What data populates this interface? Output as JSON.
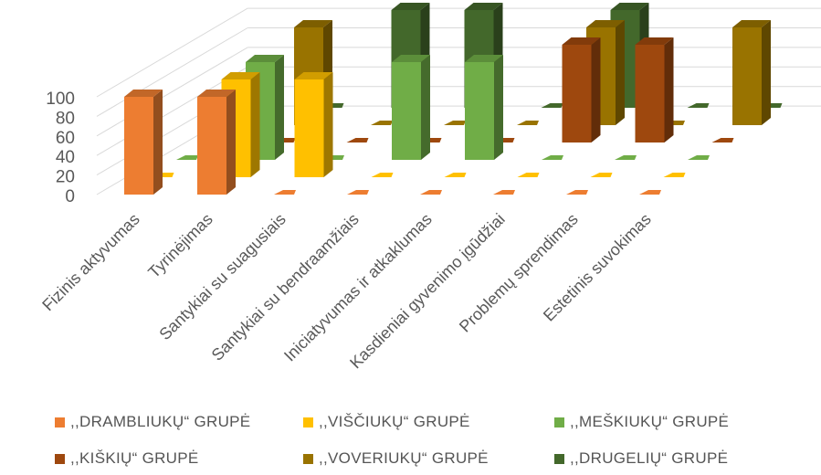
{
  "chart_data": {
    "type": "bar",
    "variant": "3d-clustered-column",
    "categories": [
      "Fizinis aktyvumas",
      "Tyrinėjimas",
      "Santykiai su suagusiais",
      "Santykiai su bendraamžiais",
      "Iniciatyvumas ir atkaklumas",
      "Kasdieniai gyvenimo įgūdžiai",
      "Problemų sprendimas",
      "Estetinis suvokimas"
    ],
    "series": [
      {
        "name": ",,DRAMBLIUKŲ“ GRUPĖ",
        "color": "#ED7D31",
        "values": [
          100,
          100,
          0,
          0,
          0,
          0,
          0,
          0
        ]
      },
      {
        "name": ",,VIŠČIUKŲ“ GRUPĖ",
        "color": "#FFC000",
        "values": [
          0,
          100,
          100,
          0,
          0,
          0,
          0,
          0
        ]
      },
      {
        "name": ",,MEŠKIUKŲ“ GRUPĖ",
        "color": "#70AD47",
        "values": [
          0,
          100,
          0,
          100,
          100,
          0,
          0,
          0
        ]
      },
      {
        "name": ",,KIŠKIŲ“ GRUPĖ",
        "color": "#9E480E",
        "values": [
          0,
          0,
          0,
          0,
          0,
          100,
          100,
          0
        ]
      },
      {
        "name": ",,VOVERIUKŲ“ GRUPĖ",
        "color": "#997300",
        "values": [
          0,
          100,
          0,
          0,
          0,
          100,
          0,
          100
        ]
      },
      {
        "name": ",,DRUGELIŲ“ GRUPĖ",
        "color": "#43682B",
        "values": [
          0,
          0,
          100,
          100,
          0,
          100,
          0,
          0
        ]
      }
    ],
    "yticks": [
      "0",
      "20",
      "40",
      "60",
      "80",
      "100"
    ],
    "ylim": [
      0,
      100
    ],
    "grid": true,
    "legend_position": "bottom"
  }
}
